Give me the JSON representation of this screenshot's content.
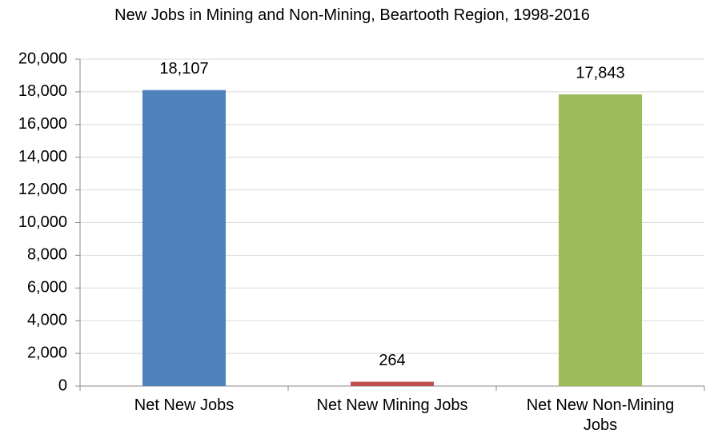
{
  "chart_data": {
    "type": "bar",
    "title": "New Jobs in Mining and Non-Mining, Beartooth Region, 1998-2016",
    "categories": [
      "Net New Jobs",
      "Net New Mining Jobs",
      "Net New Non-Mining Jobs"
    ],
    "values": [
      18107,
      264,
      17843
    ],
    "value_labels": [
      "18,107",
      "264",
      "17,843"
    ],
    "colors": [
      "#4f81bd",
      "#c0504d",
      "#9bbb59"
    ],
    "ylim": [
      0,
      20000
    ],
    "yticks": [
      0,
      {
        "value": 2000,
        "label": "2,000"
      },
      {
        "value": 4000,
        "label": "4,000"
      },
      {
        "value": 6000,
        "label": "6,000"
      },
      {
        "value": 8000,
        "label": "8,000"
      },
      {
        "value": 10000,
        "label": "10,000"
      },
      {
        "value": 12000,
        "label": "12,000"
      },
      {
        "value": 14000,
        "label": "14,000"
      },
      {
        "value": 16000,
        "label": "16,000"
      },
      {
        "value": 18000,
        "label": "18,000"
      },
      {
        "value": 20000,
        "label": "20,000"
      }
    ],
    "grid": true
  }
}
